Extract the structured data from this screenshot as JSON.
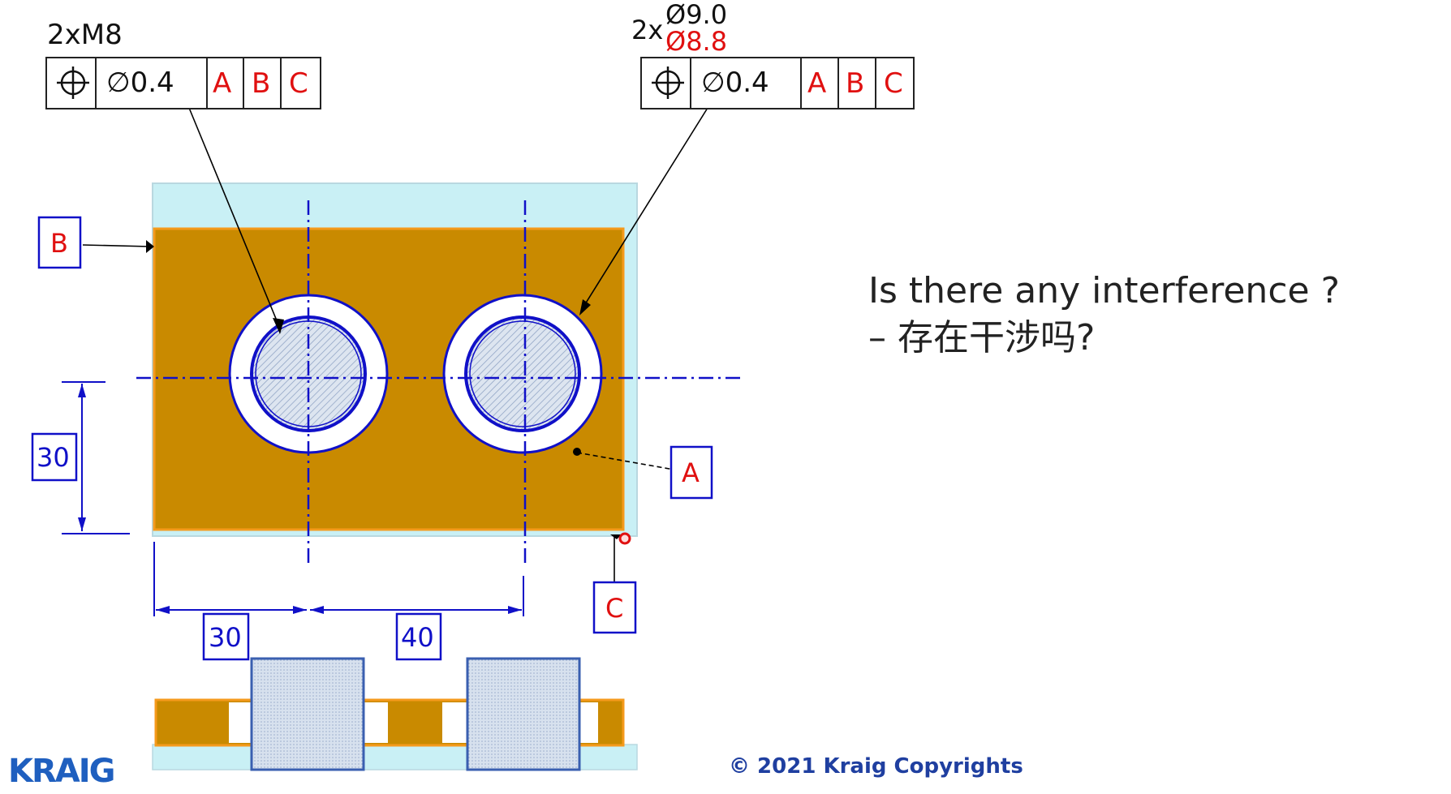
{
  "drawing": {
    "callout_left": {
      "note": "2xM8",
      "tolerance": "∅0.4",
      "datums": [
        "A",
        "B",
        "C"
      ]
    },
    "callout_right": {
      "prefix": "2x",
      "dia_top": "Ø9.0",
      "dia_bottom": "Ø8.8",
      "tolerance": "∅0.4",
      "datums": [
        "A",
        "B",
        "C"
      ]
    },
    "datum_b": "B",
    "datum_a": "A",
    "datum_c": "C",
    "dim_vertical": "30",
    "dim_horizontal_1": "30",
    "dim_horizontal_2": "40"
  },
  "question": {
    "line1": "Is there any interference ?",
    "line2": "– 存在干涉吗?"
  },
  "footer": {
    "copyright": "© 2021 Kraig Copyrights",
    "logo": "KRAIG"
  },
  "colors": {
    "plate": "#c98a00",
    "plate_border": "#f59a1c",
    "under_plate": "#c9f0f5",
    "line_blue": "#1010c8",
    "datum_red": "#e01010",
    "pin_fill": "#c9d6e8"
  }
}
